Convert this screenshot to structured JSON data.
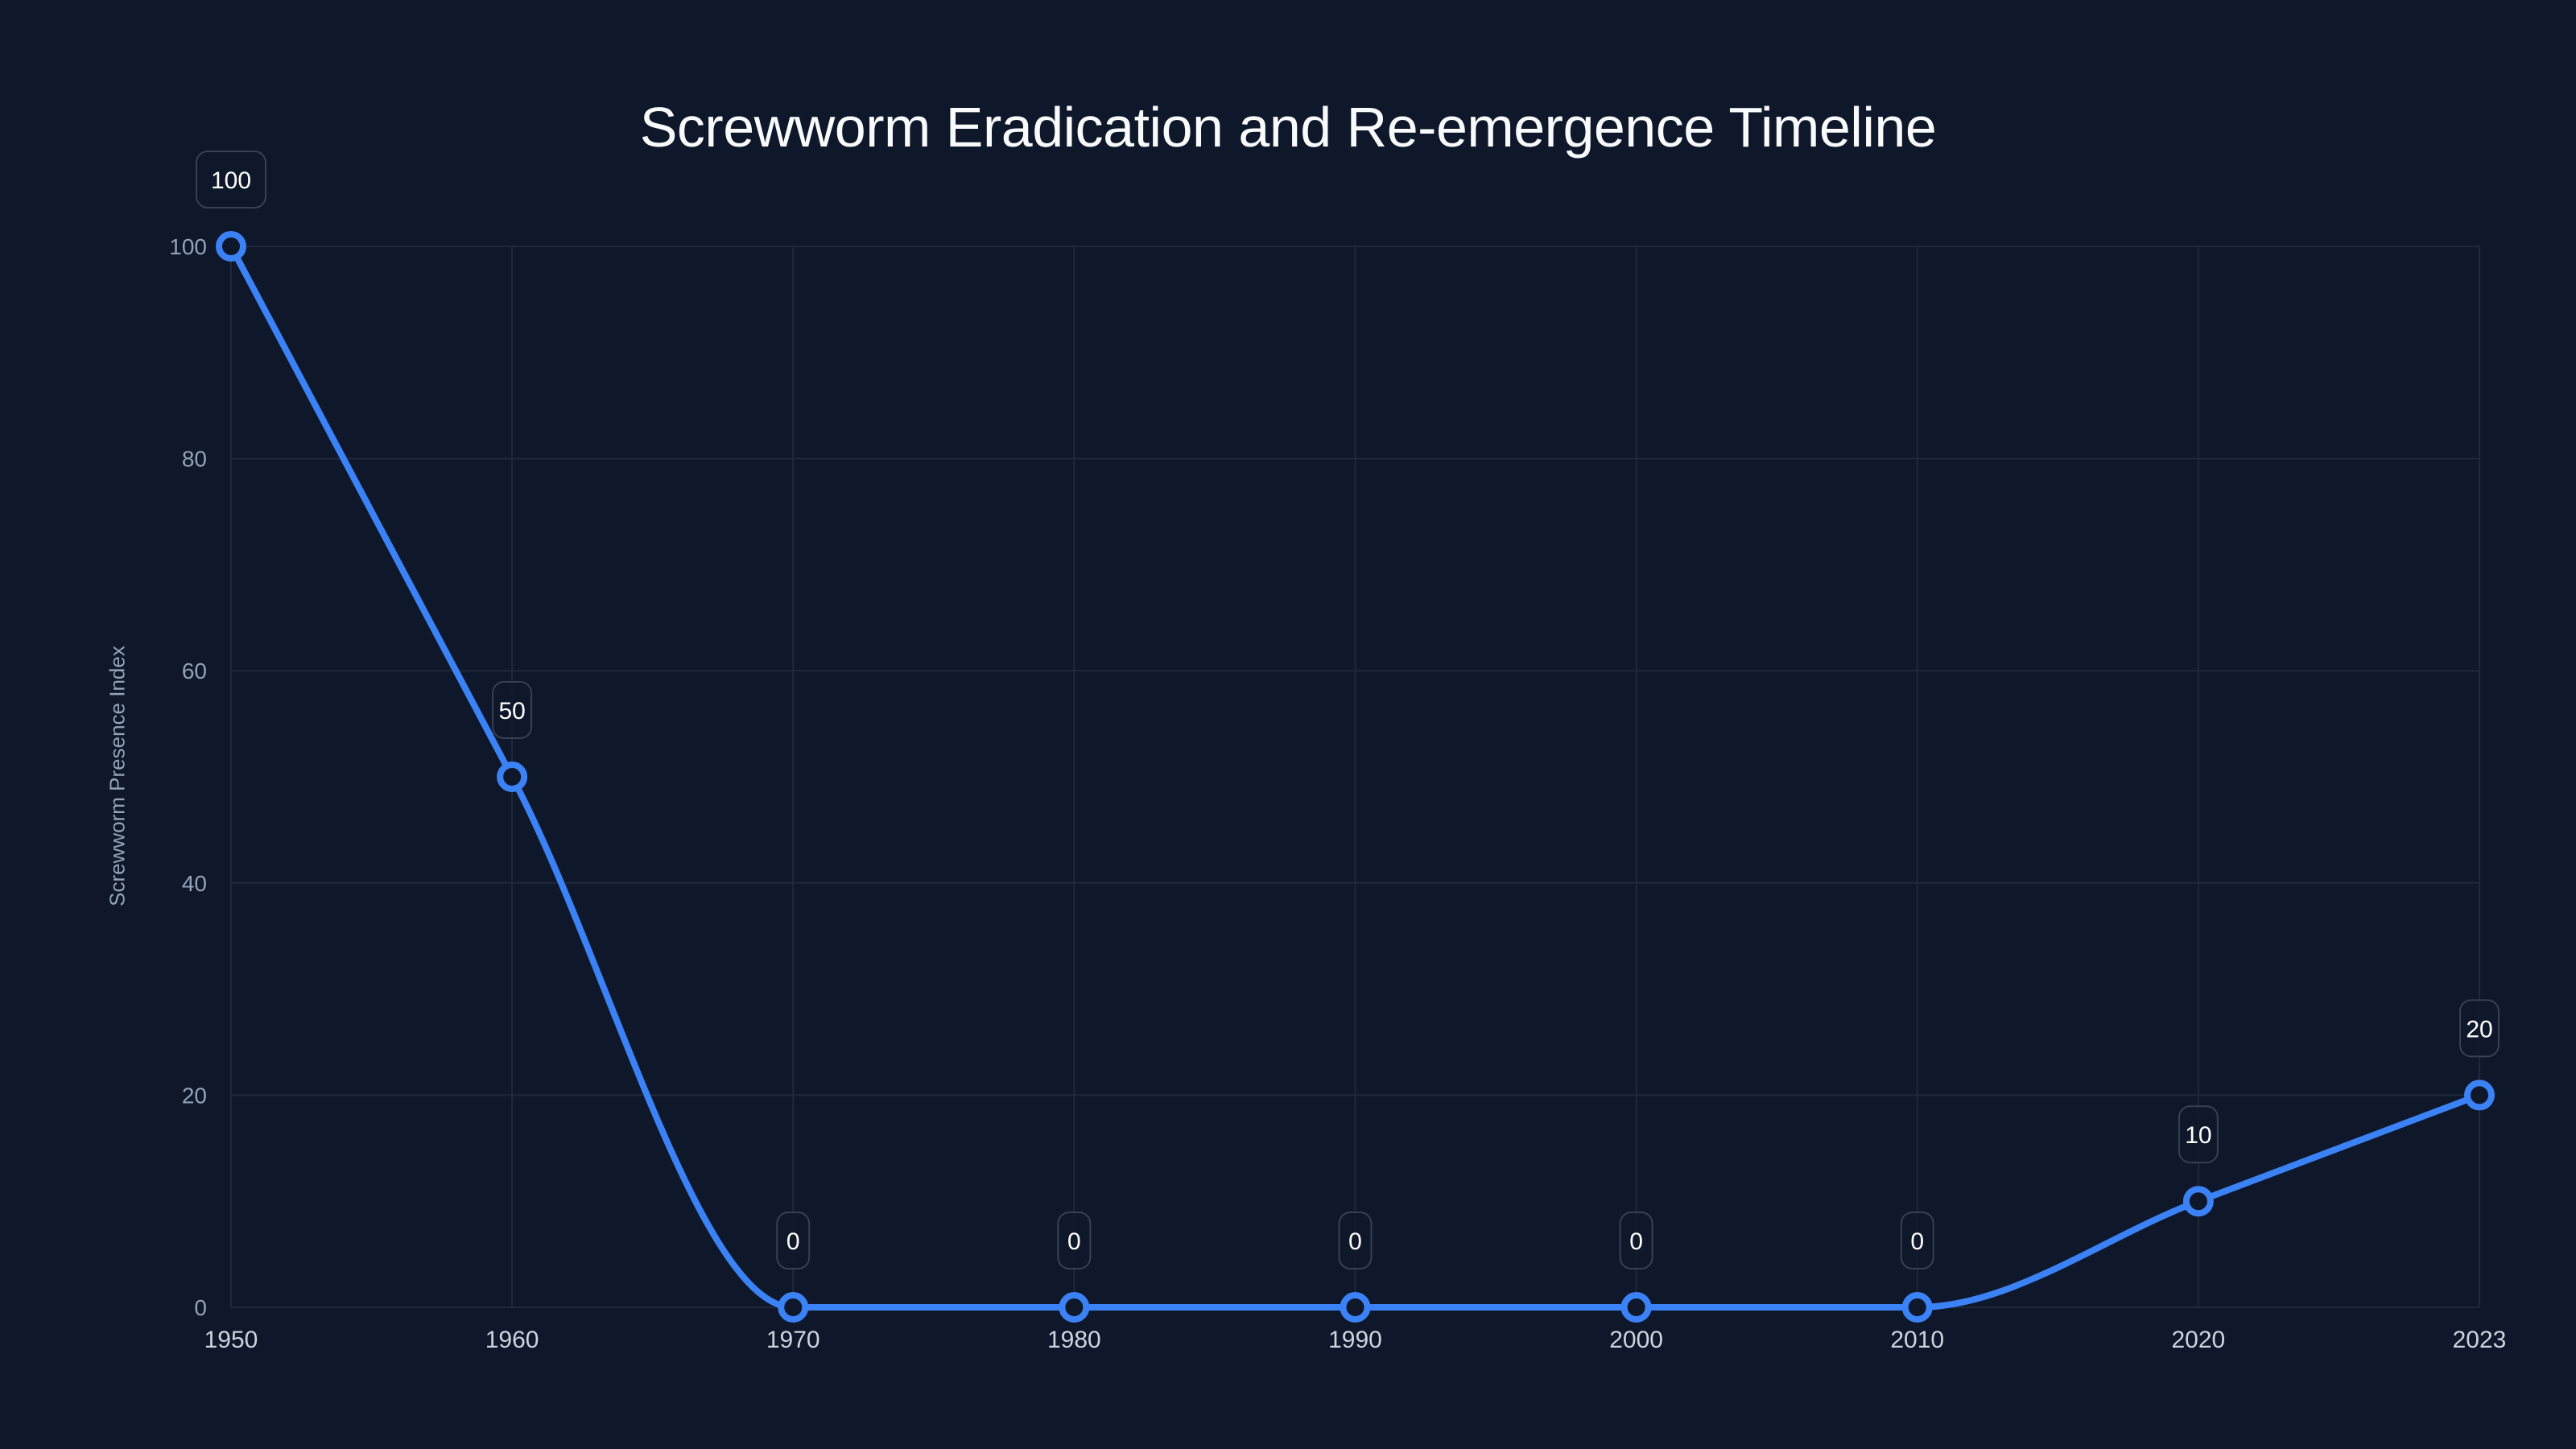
{
  "chart_data": {
    "type": "line",
    "title": "Screwworm Eradication and Re-emergence Timeline",
    "xlabel": "",
    "ylabel": "Screwworm Presence Index",
    "categories": [
      "1950",
      "1960",
      "1970",
      "1980",
      "1990",
      "2000",
      "2010",
      "2020",
      "2023"
    ],
    "series": [
      {
        "name": "Screwworm Presence Index",
        "values": [
          100,
          50,
          0,
          0,
          0,
          0,
          0,
          10,
          20
        ],
        "color": "#3b82f6"
      }
    ],
    "ylim": [
      0,
      100
    ],
    "yticks": [
      0,
      20,
      40,
      60,
      80,
      100
    ],
    "grid": true,
    "legend": "none",
    "data_labels": true
  },
  "colors": {
    "background": "#0f172a",
    "line": "#3b82f6",
    "grid": "#1e293b",
    "title": "#f8fafc",
    "tick": "#94a3b8",
    "label_box_border": "#374151"
  }
}
